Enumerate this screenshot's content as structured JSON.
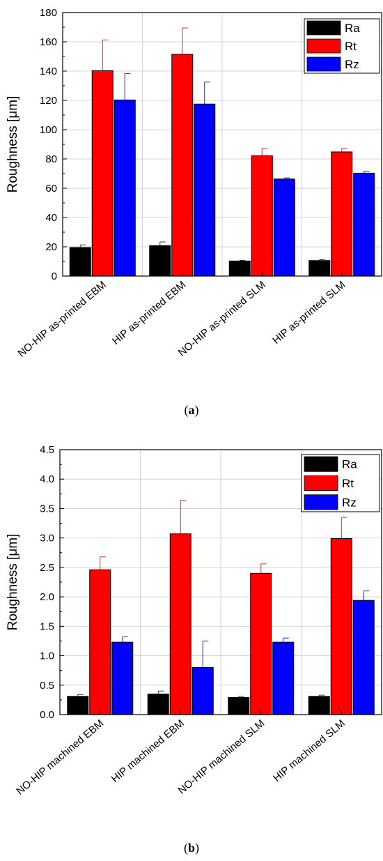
{
  "figure": {
    "panels": [
      {
        "caption_open": "(",
        "caption_letter": "a",
        "caption_close": ")"
      },
      {
        "caption_open": "(",
        "caption_letter": "b",
        "caption_close": ")"
      }
    ]
  },
  "colors": {
    "Ra": "#000000",
    "Rt": "#ff0000",
    "Rz": "#0000ff",
    "error_bar_Rt": "#c0392b",
    "error_bar_Rz": "#2222cc",
    "error_bar_Ra": "#333333",
    "grid": "#d4d4d4"
  },
  "chart_data": [
    {
      "type": "bar",
      "panel": "a",
      "ylabel": "Roughness [μm]",
      "xlabel": "",
      "ylim": [
        0,
        180
      ],
      "yticks": [
        "0",
        "20",
        "40",
        "60",
        "80",
        "100",
        "120",
        "140",
        "160",
        "180"
      ],
      "grid": true,
      "legend_position": "top-right",
      "categories": [
        "NO-HIP as-printed EBM",
        "HIP as-printed EBM",
        "NO-HIP as-printed SLM",
        "HIP as-printed SLM"
      ],
      "series": [
        {
          "name": "Ra",
          "values": [
            19.5,
            20.8,
            10.3,
            10.6
          ],
          "errors": [
            1.8,
            2.5,
            0.4,
            0.6
          ]
        },
        {
          "name": "Rt",
          "values": [
            140.3,
            151.5,
            82.2,
            84.8
          ],
          "errors": [
            21,
            18,
            5,
            2.4
          ]
        },
        {
          "name": "Rz",
          "values": [
            120.3,
            117.5,
            66.3,
            70.3
          ],
          "errors": [
            18,
            15,
            0.8,
            1.4
          ]
        }
      ]
    },
    {
      "type": "bar",
      "panel": "b",
      "ylabel": "Roughness [μm]",
      "xlabel": "",
      "ylim": [
        0,
        4.5
      ],
      "yticks": [
        "0.0",
        "0.5",
        "1.0",
        "1.5",
        "2.0",
        "2.5",
        "3.0",
        "3.5",
        "4.0",
        "4.5"
      ],
      "grid": true,
      "legend_position": "top-right",
      "categories": [
        "NO-HIP machined EBM",
        "HIP machined EBM",
        "NO-HIP machined SLM",
        "HIP machined SLM"
      ],
      "series": [
        {
          "name": "Ra",
          "values": [
            0.31,
            0.35,
            0.29,
            0.31
          ],
          "errors": [
            0.03,
            0.05,
            0.02,
            0.02
          ]
        },
        {
          "name": "Rt",
          "values": [
            2.46,
            3.07,
            2.4,
            2.99
          ],
          "errors": [
            0.22,
            0.57,
            0.16,
            0.36
          ]
        },
        {
          "name": "Rz",
          "values": [
            1.23,
            0.8,
            1.23,
            1.94
          ],
          "errors": [
            0.09,
            0.45,
            0.07,
            0.16
          ]
        }
      ]
    }
  ]
}
